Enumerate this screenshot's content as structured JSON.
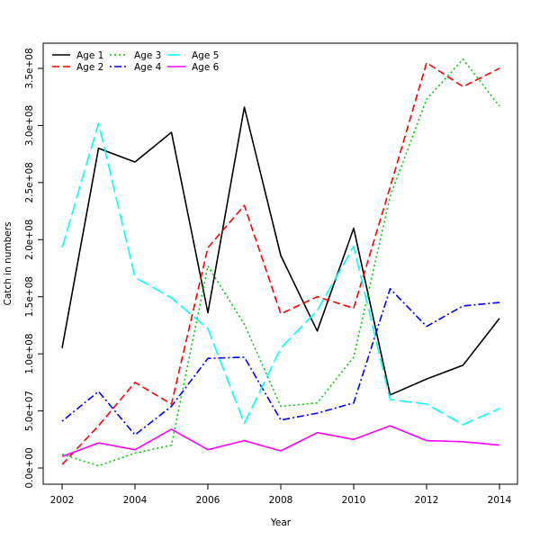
{
  "chart_data": {
    "type": "line",
    "title": "",
    "xlabel": "Year",
    "ylabel": "Catch in numbers",
    "xlim": [
      2002,
      2014
    ],
    "ylim": [
      0,
      350000000
    ],
    "x_ticks": [
      2002,
      2004,
      2006,
      2008,
      2010,
      2012,
      2014
    ],
    "y_ticks": [
      0,
      50000000,
      100000000,
      150000000,
      200000000,
      250000000,
      300000000,
      350000000
    ],
    "y_tick_labels": [
      "0.0e+00",
      "5.0e+07",
      "1.0e+08",
      "1.5e+08",
      "2.0e+08",
      "2.5e+08",
      "3.0e+08",
      "3.5e+08"
    ],
    "grid": false,
    "legend_position": "top-left",
    "x": [
      2002,
      2003,
      2004,
      2005,
      2006,
      2007,
      2008,
      2009,
      2010,
      2011,
      2012,
      2013,
      2014
    ],
    "series": [
      {
        "name": "Age 1",
        "color": "#000000",
        "dash": "solid",
        "values": [
          105000000,
          280000000,
          268000000,
          294000000,
          136000000,
          316000000,
          186000000,
          120000000,
          210000000,
          64000000,
          78000000,
          90000000,
          131000000
        ]
      },
      {
        "name": "Age 2",
        "color": "#ff0000",
        "dash": "dashed",
        "values": [
          3000000,
          37000000,
          75000000,
          56000000,
          193000000,
          230000000,
          135000000,
          150000000,
          140000000,
          246000000,
          355000000,
          334000000,
          350000000
        ]
      },
      {
        "name": "Age 3",
        "color": "#00cd00",
        "dash": "dotted",
        "values": [
          12000000,
          2000000,
          13000000,
          20000000,
          177000000,
          126000000,
          54000000,
          57000000,
          97000000,
          238000000,
          323000000,
          358000000,
          317000000
        ]
      },
      {
        "name": "Age 4",
        "color": "#0000ff",
        "dash": "dotdash",
        "values": [
          41000000,
          67000000,
          29000000,
          54000000,
          96000000,
          97000000,
          42000000,
          48000000,
          57000000,
          157000000,
          124000000,
          142000000,
          145000000
        ]
      },
      {
        "name": "Age 5",
        "color": "#00ffff",
        "dash": "longdash",
        "values": [
          193000000,
          302000000,
          167000000,
          149000000,
          122000000,
          39000000,
          105000000,
          138000000,
          194000000,
          60000000,
          56000000,
          38000000,
          52000000
        ]
      },
      {
        "name": "Age 6",
        "color": "#ff00ff",
        "dash": "solid",
        "values": [
          10000000,
          22000000,
          16000000,
          34000000,
          16000000,
          24000000,
          15000000,
          31000000,
          25000000,
          37000000,
          24000000,
          23000000,
          20000000
        ]
      }
    ]
  }
}
